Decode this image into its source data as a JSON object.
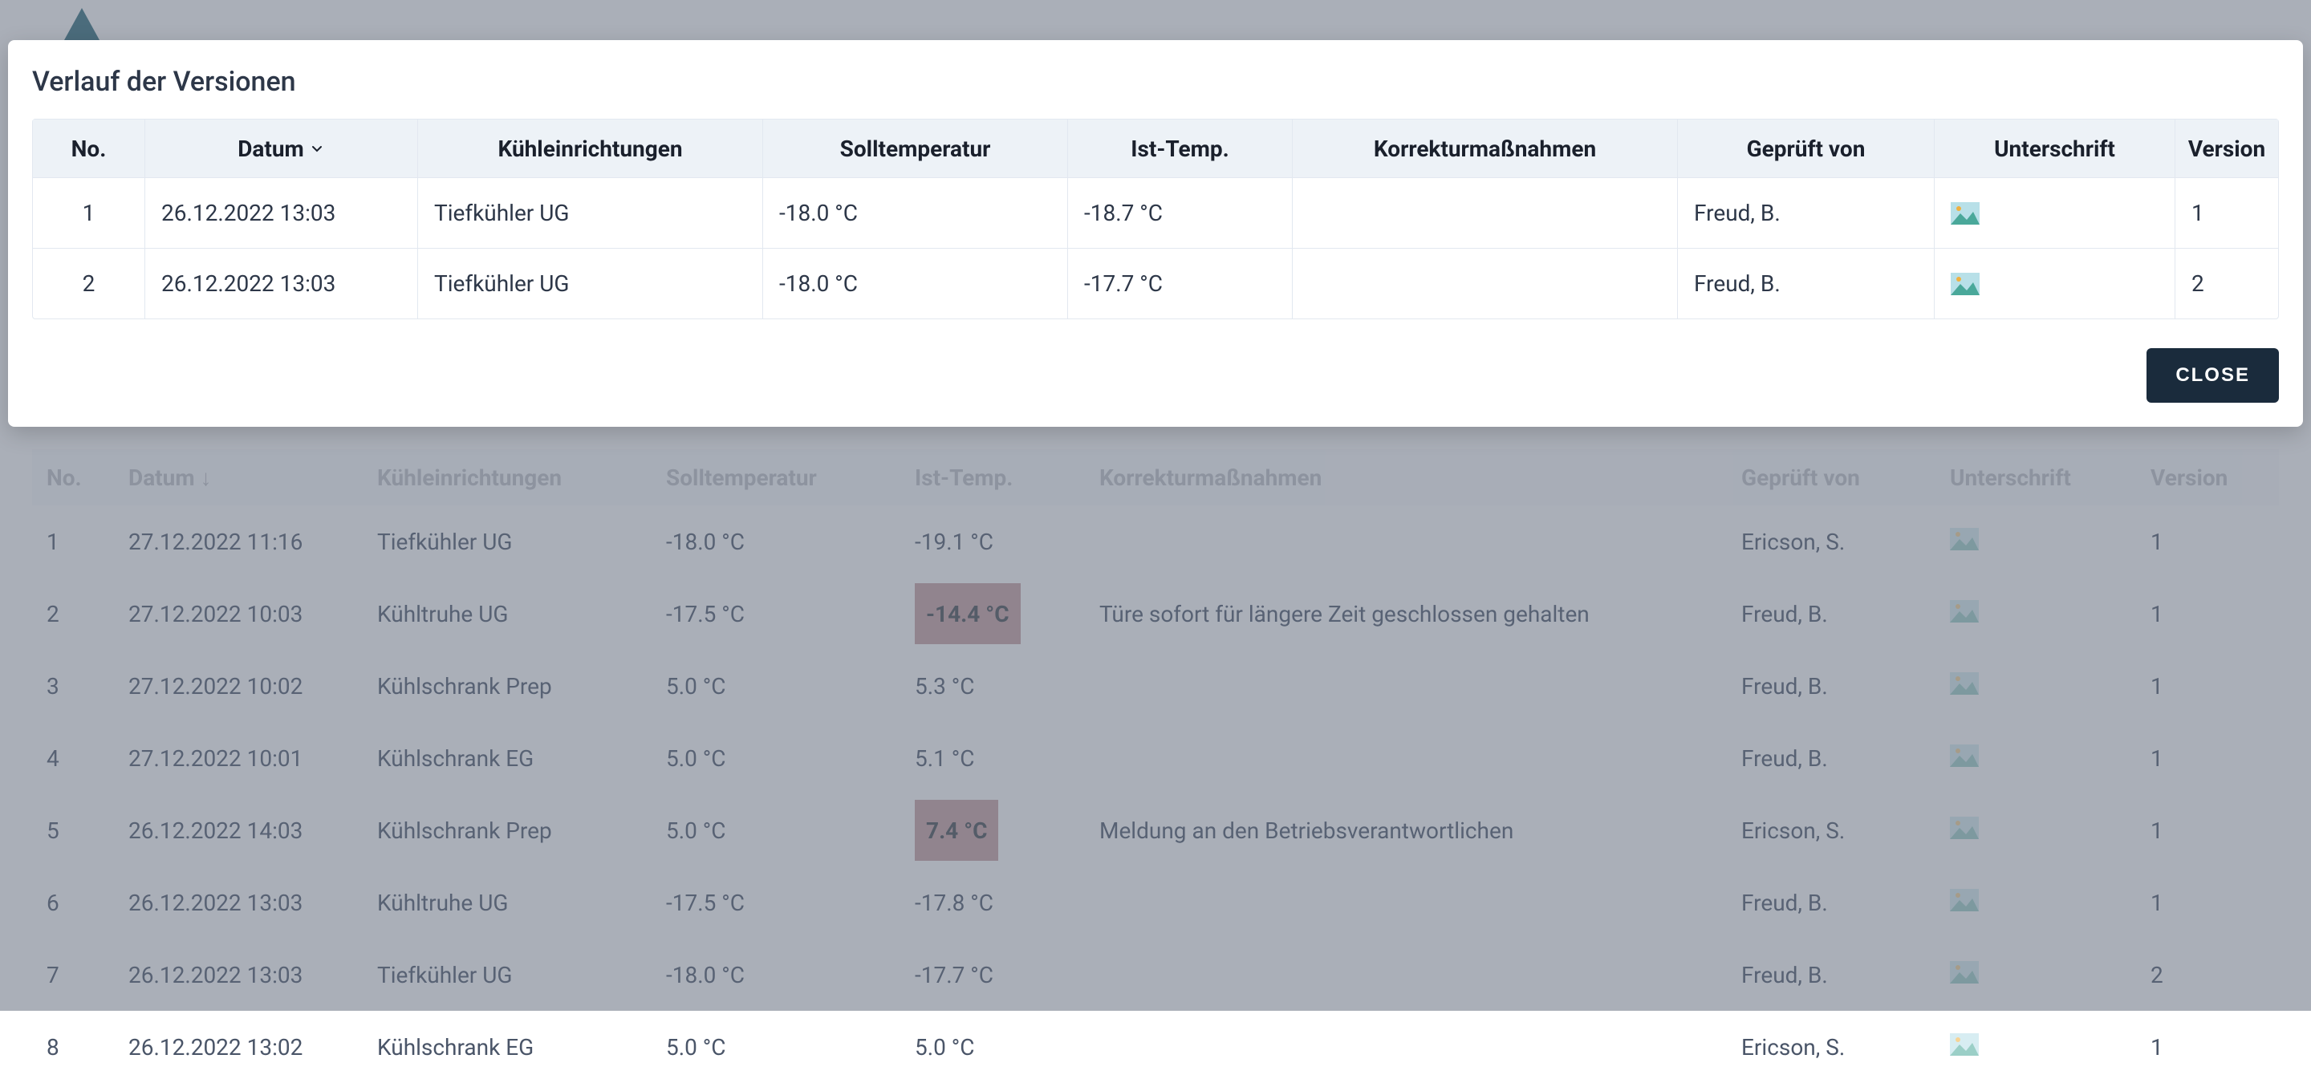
{
  "modal": {
    "title": "Verlauf der Versionen",
    "columns": {
      "no": "No.",
      "date": "Datum",
      "equip": "Kühleinrichtungen",
      "soll": "Solltemperatur",
      "ist": "Ist-Temp.",
      "korr": "Korrekturmaßnahmen",
      "pruf": "Geprüft von",
      "sig": "Unterschrift",
      "ver": "Version"
    },
    "rows": [
      {
        "no": "1",
        "date": "26.12.2022 13:03",
        "equip": "Tiefkühler UG",
        "soll": "-18.0 °C",
        "ist": "-18.7 °C",
        "korr": "",
        "pruf": "Freud, B.",
        "ver": "1"
      },
      {
        "no": "2",
        "date": "26.12.2022 13:03",
        "equip": "Tiefkühler UG",
        "soll": "-18.0 °C",
        "ist": "-17.7 °C",
        "korr": "",
        "pruf": "Freud, B.",
        "ver": "2"
      }
    ],
    "close_label": "CLOSE"
  },
  "bg_table": {
    "columns": {
      "no": "No.",
      "date": "Datum",
      "equip": "Kühleinrichtungen",
      "soll": "Solltemperatur",
      "ist": "Ist-Temp.",
      "korr": "Korrekturmaßnahmen",
      "pruf": "Geprüft von",
      "sig": "Unterschrift",
      "ver": "Version"
    },
    "rows": [
      {
        "no": "1",
        "date": "27.12.2022 11:16",
        "equip": "Tiefkühler UG",
        "soll": "-18.0 °C",
        "ist": "-19.1 °C",
        "ist_warn": false,
        "korr": "",
        "pruf": "Ericson, S.",
        "ver": "1"
      },
      {
        "no": "2",
        "date": "27.12.2022 10:03",
        "equip": "Kühltruhe UG",
        "soll": "-17.5 °C",
        "ist": "-14.4 °C",
        "ist_warn": true,
        "korr": "Türe sofort für längere Zeit geschlossen gehalten",
        "pruf": "Freud, B.",
        "ver": "1"
      },
      {
        "no": "3",
        "date": "27.12.2022 10:02",
        "equip": "Kühlschrank Prep",
        "soll": "5.0 °C",
        "ist": "5.3 °C",
        "ist_warn": false,
        "korr": "",
        "pruf": "Freud, B.",
        "ver": "1"
      },
      {
        "no": "4",
        "date": "27.12.2022 10:01",
        "equip": "Kühlschrank EG",
        "soll": "5.0 °C",
        "ist": "5.1 °C",
        "ist_warn": false,
        "korr": "",
        "pruf": "Freud, B.",
        "ver": "1"
      },
      {
        "no": "5",
        "date": "26.12.2022 14:03",
        "equip": "Kühlschrank Prep",
        "soll": "5.0 °C",
        "ist": "7.4 °C",
        "ist_warn": true,
        "korr": "Meldung an den Betriebsverantwortlichen",
        "pruf": "Ericson, S.",
        "ver": "1"
      },
      {
        "no": "6",
        "date": "26.12.2022 13:03",
        "equip": "Kühltruhe UG",
        "soll": "-17.5 °C",
        "ist": "-17.8 °C",
        "ist_warn": false,
        "korr": "",
        "pruf": "Freud, B.",
        "ver": "1"
      },
      {
        "no": "7",
        "date": "26.12.2022 13:03",
        "equip": "Tiefkühler UG",
        "soll": "-18.0 °C",
        "ist": "-17.7 °C",
        "ist_warn": false,
        "korr": "",
        "pruf": "Freud, B.",
        "ver": "2"
      },
      {
        "no": "8",
        "date": "26.12.2022 13:02",
        "equip": "Kühlschrank EG",
        "soll": "5.0 °C",
        "ist": "5.0 °C",
        "ist_warn": false,
        "korr": "",
        "pruf": "Ericson, S.",
        "ver": "1"
      }
    ]
  },
  "colors": {
    "overlay": "rgba(100,110,125,0.55)",
    "modal_bg": "#ffffff",
    "header_bg": "#edf2f7",
    "border": "#e2e8f0",
    "text_primary": "#2d3748",
    "text_muted": "#4a5568",
    "warn_bg": "#c7a0a3",
    "btn_bg": "#1a2b3c",
    "btn_text": "#ffffff"
  }
}
